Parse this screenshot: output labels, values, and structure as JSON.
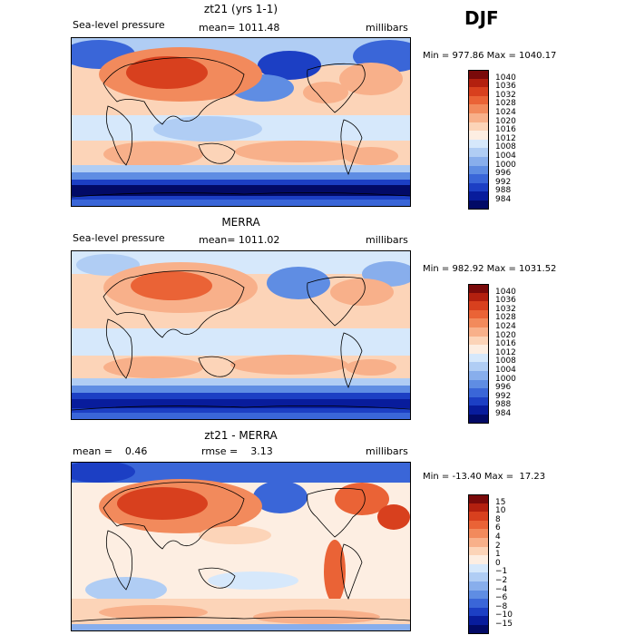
{
  "season": "DJF",
  "panels": [
    {
      "title": "zt21 (yrs 1-1)",
      "left_label": "Sea-level pressure",
      "mid_label": "mean= 1011.48",
      "right_label": "millibars",
      "minmax": "Min = 977.86 Max = 1040.17",
      "levels": [
        "1040",
        "1036",
        "1032",
        "1028",
        "1024",
        "1020",
        "1016",
        "1012",
        "1008",
        "1004",
        "1000",
        "996",
        "992",
        "988",
        "984"
      ]
    },
    {
      "title": "MERRA",
      "left_label": "Sea-level pressure",
      "mid_label": "mean= 1011.02",
      "right_label": "millibars",
      "minmax": "Min = 982.92 Max = 1031.52",
      "levels": [
        "1040",
        "1036",
        "1032",
        "1028",
        "1024",
        "1020",
        "1016",
        "1012",
        "1008",
        "1004",
        "1000",
        "996",
        "992",
        "988",
        "984"
      ]
    },
    {
      "title": "zt21 - MERRA",
      "left_label": "mean =    0.46",
      "mid_label": "rmse =    3.13",
      "right_label": "millibars",
      "minmax": "Min = -13.40 Max =  17.23",
      "levels": [
        "15",
        "10",
        "8",
        "6",
        "4",
        "2",
        "1",
        "0",
        "−1",
        "−2",
        "−4",
        "−6",
        "−8",
        "−10",
        "−15"
      ]
    }
  ],
  "colors": {
    "scale": [
      "#7a0a0a",
      "#b3200f",
      "#d8401e",
      "#ea6336",
      "#f28a5c",
      "#f8b08a",
      "#fcd4b8",
      "#fdeee2",
      "#d6e8fb",
      "#b0cdf4",
      "#88aeec",
      "#5f8de3",
      "#3a66d8",
      "#1c3fc4",
      "#081c9c",
      "#020a66"
    ],
    "land_outline": "#000000"
  }
}
